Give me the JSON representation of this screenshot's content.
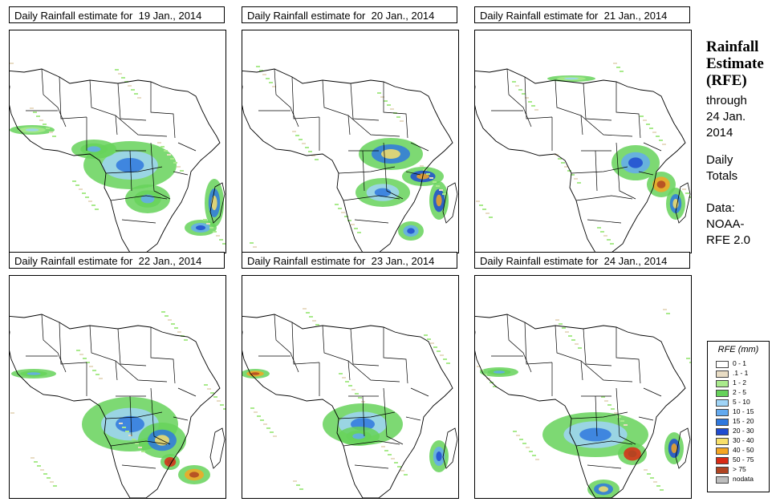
{
  "panels": [
    {
      "title": "Daily Rainfall estimate for  19 Jan., 2014"
    },
    {
      "title": "Daily Rainfall estimate for  20 Jan., 2014"
    },
    {
      "title": "Daily Rainfall estimate for  21 Jan., 2014"
    },
    {
      "title": "Daily Rainfall estimate for  22 Jan., 2014"
    },
    {
      "title": "Daily Rainfall estimate for  23 Jan., 2014"
    },
    {
      "title": "Daily Rainfall estimate for  24 Jan., 2014"
    }
  ],
  "side": {
    "title_line1": "Rainfall",
    "title_line2": "Estimate",
    "title_line3": "(RFE)",
    "through": "through",
    "date_line1": "24 Jan.",
    "date_line2": "2014",
    "daily": "Daily",
    "totals": "Totals",
    "data_label": "Data:",
    "source_line1": "NOAA-",
    "source_line2": "RFE 2.0"
  },
  "legend": {
    "title": "RFE (mm)",
    "items": [
      {
        "label": "0 - 1",
        "color": "#ffffff"
      },
      {
        "label": ".1 - 1",
        "color": "#e8dcc4"
      },
      {
        "label": "1 - 2",
        "color": "#a9ea8c"
      },
      {
        "label": "2 - 5",
        "color": "#66d25a"
      },
      {
        "label": "5 - 10",
        "color": "#9fd4f7"
      },
      {
        "label": "10 - 15",
        "color": "#63aaf0"
      },
      {
        "label": "15 - 20",
        "color": "#2f78de"
      },
      {
        "label": "20 - 30",
        "color": "#1f4bd0"
      },
      {
        "label": "30 - 40",
        "color": "#f8e06a"
      },
      {
        "label": "40 - 50",
        "color": "#f5a623"
      },
      {
        "label": "50 - 75",
        "color": "#d92a14"
      },
      {
        "label": "> 75",
        "color": "#b04422"
      },
      {
        "label": "nodata",
        "color": "#bdbdbd"
      }
    ]
  }
}
